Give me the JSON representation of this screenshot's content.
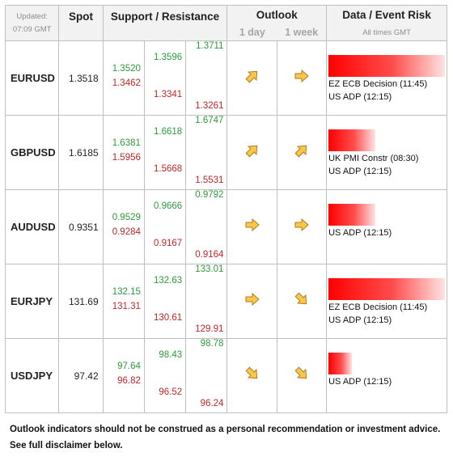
{
  "header": {
    "updated_label": "Updated:",
    "updated_time": "07:09 GMT",
    "spot": "Spot",
    "support_resistance": "Support / Resistance",
    "outlook": "Outlook",
    "outlook_1day": "1 day",
    "outlook_1week": "1 week",
    "data_event_risk": "Data / Event Risk",
    "all_times": "All times GMT"
  },
  "rows": [
    {
      "pair": "EURUSD",
      "spot": "1.3518",
      "levels": {
        "c1": [
          "1.3520",
          "1.3462"
        ],
        "c2": [
          "1.3596",
          "1.3341"
        ],
        "c3": [
          "1.3711",
          "1.3261"
        ]
      },
      "outlook_1day": "up-right",
      "outlook_1week": "right",
      "event_risk_level": 1.0,
      "events": [
        "EZ ECB Decision (11:45)",
        "US ADP (12:15)"
      ]
    },
    {
      "pair": "GBPUSD",
      "spot": "1.6185",
      "levels": {
        "c1": [
          "1.6381",
          "1.5956"
        ],
        "c2": [
          "1.6618",
          "1.5668"
        ],
        "c3": [
          "1.6747",
          "1.5531"
        ]
      },
      "outlook_1day": "up-right",
      "outlook_1week": "up-right",
      "event_risk_level": 0.4,
      "events": [
        "UK PMI Constr (08:30)",
        "US ADP (12:15)"
      ]
    },
    {
      "pair": "AUDUSD",
      "spot": "0.9351",
      "levels": {
        "c1": [
          "0.9529",
          "0.9284"
        ],
        "c2": [
          "0.9666",
          "0.9167"
        ],
        "c3": [
          "0.9792",
          "0.9164"
        ]
      },
      "outlook_1day": "right",
      "outlook_1week": "right",
      "event_risk_level": 0.4,
      "events": [
        "US ADP (12:15)"
      ]
    },
    {
      "pair": "EURJPY",
      "spot": "131.69",
      "levels": {
        "c1": [
          "132.15",
          "131.31"
        ],
        "c2": [
          "132.63",
          "130.61"
        ],
        "c3": [
          "133.01",
          "129.91"
        ]
      },
      "outlook_1day": "right",
      "outlook_1week": "down-right",
      "event_risk_level": 1.0,
      "events": [
        "EZ ECB Decision (11:45)",
        "US ADP (12:15)"
      ]
    },
    {
      "pair": "USDJPY",
      "spot": "97.42",
      "levels": {
        "c1": [
          "97.64",
          "96.82"
        ],
        "c2": [
          "98.43",
          "96.52"
        ],
        "c3": [
          "98.78",
          "96.24"
        ]
      },
      "outlook_1day": "down-right",
      "outlook_1week": "down-right",
      "event_risk_level": 0.2,
      "events": [
        "US ADP (12:15)"
      ]
    }
  ],
  "footer": {
    "line1": "Outlook indicators should not be construed as a personal recommendation or investment advice.",
    "line2": "See full disclaimer below."
  },
  "colors": {
    "support_green": "#2e9a3c",
    "resistance_red": "#c02626",
    "arrow_fill": "#f7c84a",
    "arrow_stroke": "#b7791f",
    "risk_bar": "#ff0000"
  }
}
